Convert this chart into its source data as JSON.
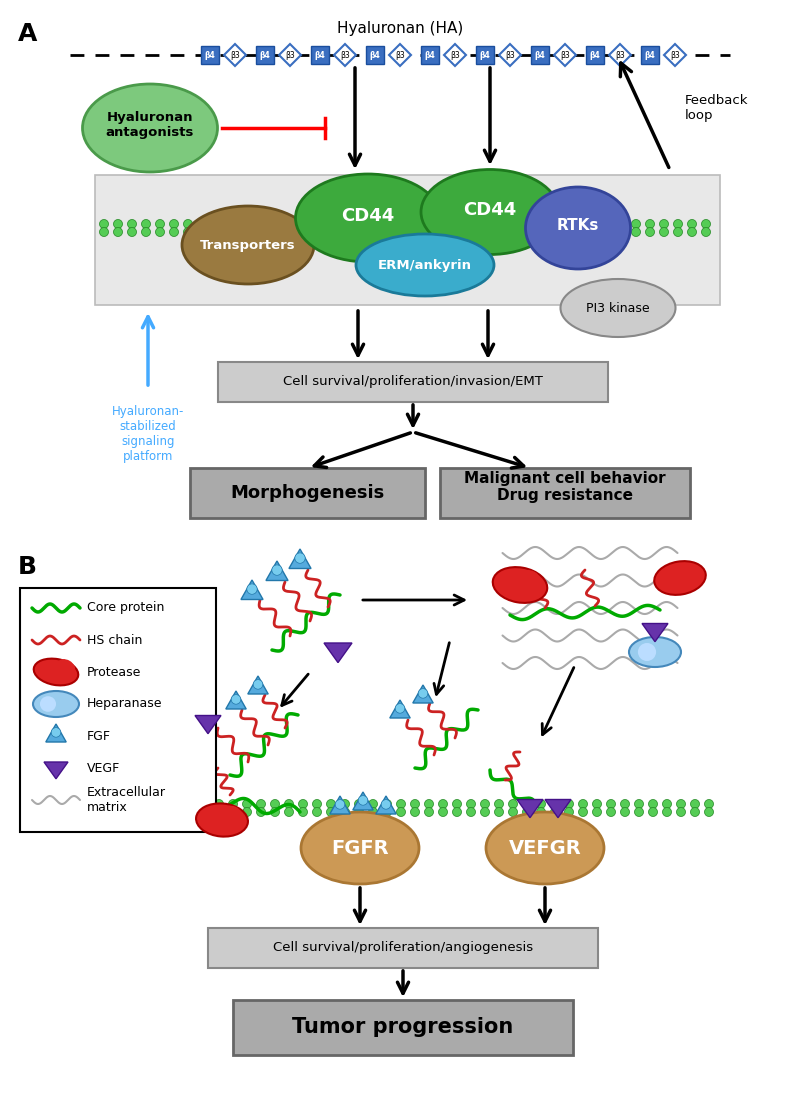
{
  "title_A": "A",
  "title_B": "B",
  "ha_label": "Hyaluronan (HA)",
  "cell_survival_text": "Cell survival/proliferation/invasion/EMT",
  "morphogenesis_text": "Morphogenesis",
  "malignant_text": "Malignant cell behavior\nDrug resistance",
  "hyaluronan_antagonists_text": "Hyaluronan\nantagonists",
  "hyaluronan_stabilized_text": "Hyaluronan-\nstabilized\nsignaling\nplatform",
  "feedback_loop_text": "Feedback\nloop",
  "cd44_text": "CD44",
  "transporters_text": "Transporters",
  "erm_text": "ERM/ankyrin",
  "rtks_text": "RTKs",
  "pi3k_text": "PI3 kinase",
  "fgfr_text": "FGFR",
  "vefgr_text": "VEFGR",
  "cell_survival2_text": "Cell survival/proliferation/angiogenesis",
  "tumor_progression_text": "Tumor progression",
  "bg_color": "#ffffff",
  "green_circle_color": "#7dc97d",
  "green_circle_edge": "#4a9a4a",
  "cd44_color": "#3daa3d",
  "cd44_edge": "#1e7a1e",
  "transporters_color": "#9a7a40",
  "transporters_edge": "#6a5020",
  "erm_color": "#3aaccc",
  "erm_edge": "#1a7a99",
  "rtks_color": "#5566bb",
  "rtks_edge": "#334499",
  "pi3k_color": "#cccccc",
  "pi3k_edge": "#888888",
  "fgfr_color": "#cc9955",
  "fgfr_edge": "#aa7733",
  "membrane_fill": "#e8e8e8",
  "membrane_edge": "#bbbbbb",
  "box_fill_light": "#cccccc",
  "box_fill_dark": "#aaaaaa",
  "box_edge": "#888888",
  "ha_blue": "#3a6ec0",
  "ha_blue_edge": "#1a4e9e"
}
